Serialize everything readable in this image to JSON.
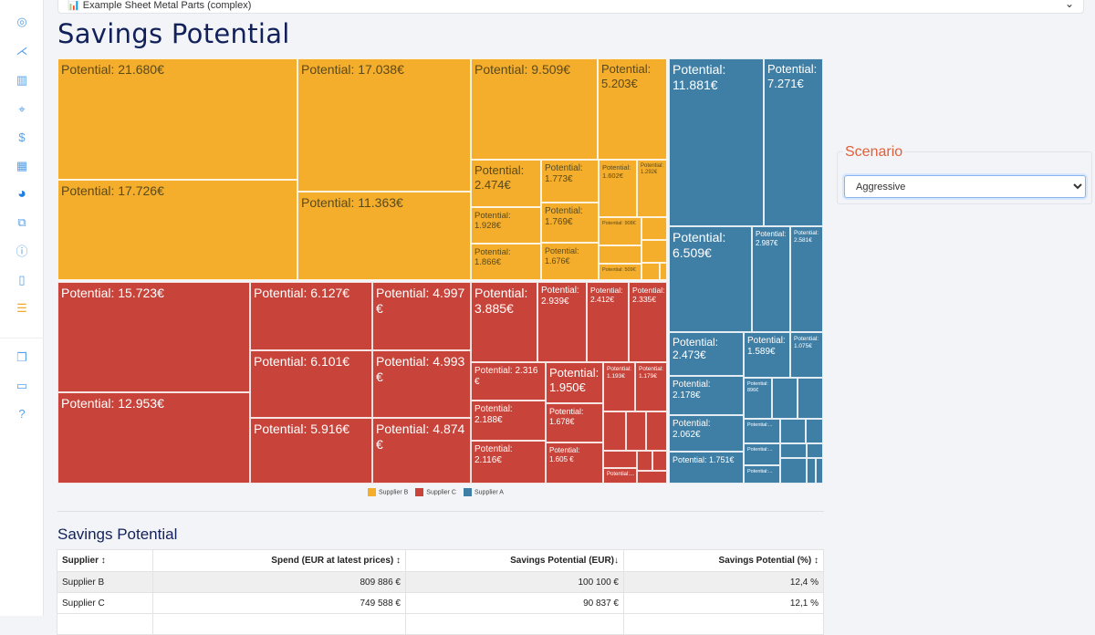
{
  "sidebar": {
    "icons": [
      "palette-icon",
      "graph-icon",
      "filter-icon",
      "target-icon",
      "dollar-icon",
      "grid-icon",
      "pie-chart-icon",
      "external-link-icon",
      "info-icon",
      "document-icon",
      "list-icon",
      "copy-icon",
      "book-icon",
      "help-icon"
    ],
    "active": "pie-chart-icon"
  },
  "dataset": {
    "label": "Example Sheet Metal Parts (complex)"
  },
  "page": {
    "title": "Savings Potential"
  },
  "scenario": {
    "label": "Scenario",
    "selected": "Aggressive"
  },
  "colors": {
    "Supplier B": "#f5ad2c",
    "Supplier C": "#c8443a",
    "Supplier A": "#3f7fa6",
    "title": "#13215a",
    "scenario": "#e0603a"
  },
  "treemap": {
    "legend": [
      "Supplier B",
      "Supplier C",
      "Supplier A"
    ],
    "supplier_b": [
      "Potential: 21.680€",
      "Potential: 17.726€",
      "Potential: 17.038€",
      "Potential: 11.363€",
      "Potential: 9.509€",
      "Potential: 5.203€",
      "Potential: 2.474€",
      "Potential: 1.928€",
      "Potential: 1.866€",
      "Potential: 1.773€",
      "Potential: 1.769€",
      "Potential: 1.676€",
      "Potential: 1.602€",
      "Potential: 1.292€",
      "Potential: 908€",
      "Potential: 509€"
    ],
    "supplier_c": [
      "Potential: 15.723€",
      "Potential: 12.953€",
      "Potential: 6.127€",
      "Potential: 6.101€",
      "Potential: 5.916€",
      "Potential: 4.997 €",
      "Potential: 4.993 €",
      "Potential: 4.874 €",
      "Potential: 3.885€",
      "Potential: 2.939€",
      "Potential: 2.412€",
      "Potential: 2.335€",
      "Potential: 2.316 €",
      "Potential: 2.188€",
      "Potential: 2.116€",
      "Potential: 1.950€",
      "Potential: 1.678€",
      "Potential: 1.605 €",
      "Potential: 1.193€",
      "Potential: 1.179€",
      "Potential:..."
    ],
    "supplier_a": [
      "Potential: 11.881€",
      "Potential: 7.271€",
      "Potential: 6.509€",
      "Potential: 2.987€",
      "Potential: 2.581€",
      "Potential: 2.473€",
      "Potential: 2.178€",
      "Potential: 2.062€",
      "Potential: 1.751€",
      "Potential: 1.589€",
      "Potential: 1.075€",
      "Potential: 896€",
      "Potential:...",
      "Potential:...",
      "Potential:..."
    ]
  },
  "table": {
    "title": "Savings Potential",
    "columns": [
      "Supplier ↕",
      "Spend (EUR at latest prices) ↕",
      "Savings Potential (EUR)↓",
      "Savings Potential (%) ↕"
    ],
    "rows": [
      [
        "Supplier B",
        "809 886 €",
        "100 100 €",
        "12,4 %"
      ],
      [
        "Supplier C",
        "749 588 €",
        "90 837 €",
        "12,1 %"
      ]
    ]
  }
}
